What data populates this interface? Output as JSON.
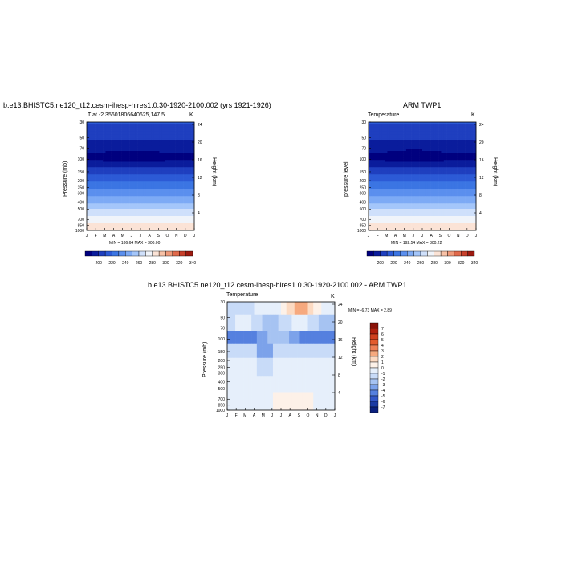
{
  "chart_data": [
    {
      "type": "heatmap",
      "title": "b.e13.BHISTC5.ne120_t12.cesm-ihesp-hires1.0.30-1920-2100.002 (yrs 1921-1926)",
      "subtitle_left": "T at -2.35601806640625,147.5",
      "subtitle_right": "K",
      "ylabel": "Pressure (mb)",
      "ylabel_right": "Height (km)",
      "x_ticks": [
        "J",
        "F",
        "M",
        "A",
        "M",
        "J",
        "J",
        "A",
        "S",
        "O",
        "N",
        "D",
        "J"
      ],
      "y_ticks": [
        "30",
        "50",
        "70",
        "100",
        "150",
        "200",
        "250",
        "300",
        "400",
        "500",
        "700",
        "850",
        "1000"
      ],
      "y_right_ticks": [
        "24",
        "20",
        "16",
        "12",
        "8",
        "4"
      ],
      "stats": "MIN = 186.64 MAX = 300.00",
      "colorbar_labels": [
        "200",
        "220",
        "240",
        "260",
        "280",
        "300",
        "320",
        "340"
      ],
      "levels": [
        190,
        200,
        210,
        220,
        230,
        240,
        250,
        260,
        270,
        280,
        290,
        300,
        310,
        320,
        330,
        340,
        350
      ]
    },
    {
      "type": "heatmap",
      "title": "ARM TWP1",
      "subtitle_left": "Temperature",
      "subtitle_right": "K",
      "ylabel": "pressure level",
      "ylabel_right": "Height (km)",
      "x_ticks": [
        "J",
        "F",
        "M",
        "A",
        "M",
        "J",
        "J",
        "A",
        "S",
        "O",
        "N",
        "D",
        "J"
      ],
      "y_ticks": [
        "30",
        "50",
        "70",
        "100",
        "150",
        "200",
        "250",
        "300",
        "400",
        "500",
        "700",
        "850",
        "1000"
      ],
      "y_right_ticks": [
        "24",
        "20",
        "16",
        "12",
        "8",
        "4"
      ],
      "stats": "MIN = 192.54 MAX = 300.22",
      "colorbar_labels": [
        "200",
        "220",
        "240",
        "260",
        "280",
        "300",
        "320",
        "340"
      ],
      "levels": [
        190,
        200,
        210,
        220,
        230,
        240,
        250,
        260,
        270,
        280,
        290,
        300,
        310,
        320,
        330,
        340,
        350
      ]
    },
    {
      "type": "heatmap",
      "title": "b.e13.BHISTC5.ne120_t12.cesm-ihesp-hires1.0.30-1920-2100.002 - ARM TWP1",
      "subtitle_left": "Temperature",
      "subtitle_right": "K",
      "ylabel": "Pressure (mb)",
      "ylabel_right": "Height (km)",
      "x_ticks": [
        "J",
        "F",
        "M",
        "A",
        "M",
        "J",
        "J",
        "A",
        "S",
        "O",
        "N",
        "D",
        "J"
      ],
      "y_ticks": [
        "30",
        "50",
        "70",
        "100",
        "150",
        "200",
        "250",
        "300",
        "400",
        "500",
        "700",
        "850",
        "1000"
      ],
      "y_right_ticks": [
        "24",
        "20",
        "16",
        "12",
        "8",
        "4"
      ],
      "stats": "MIN = -6.73 MAX = 2.89",
      "colorbar_labels": [
        "7",
        "6",
        "5",
        "4",
        "3",
        "2",
        "1",
        "0",
        "-1",
        "-2",
        "-3",
        "-4",
        "-5",
        "-6",
        "-7"
      ]
    }
  ],
  "colors": {
    "abs_scale": [
      "#00007f",
      "#0a1c9c",
      "#1f3fbf",
      "#2c5ad6",
      "#3b75e3",
      "#5b8fee",
      "#7daaf5",
      "#a4c6fa",
      "#cfe0fb",
      "#f0f4fa",
      "#fbe3d6",
      "#f7c1a6",
      "#ef9a7a",
      "#e06a4c",
      "#c8402b",
      "#9e1a10"
    ],
    "diff_scale": [
      "#8a1209",
      "#b0200f",
      "#d0401f",
      "#e35b2e",
      "#ee8057",
      "#f6a97e",
      "#fcdac2",
      "#fdf1e8",
      "#e6effb",
      "#c8dbf8",
      "#a6c3f2",
      "#7ca2ea",
      "#5580df",
      "#3257c8",
      "#1a3aa3",
      "#0a207e"
    ]
  }
}
